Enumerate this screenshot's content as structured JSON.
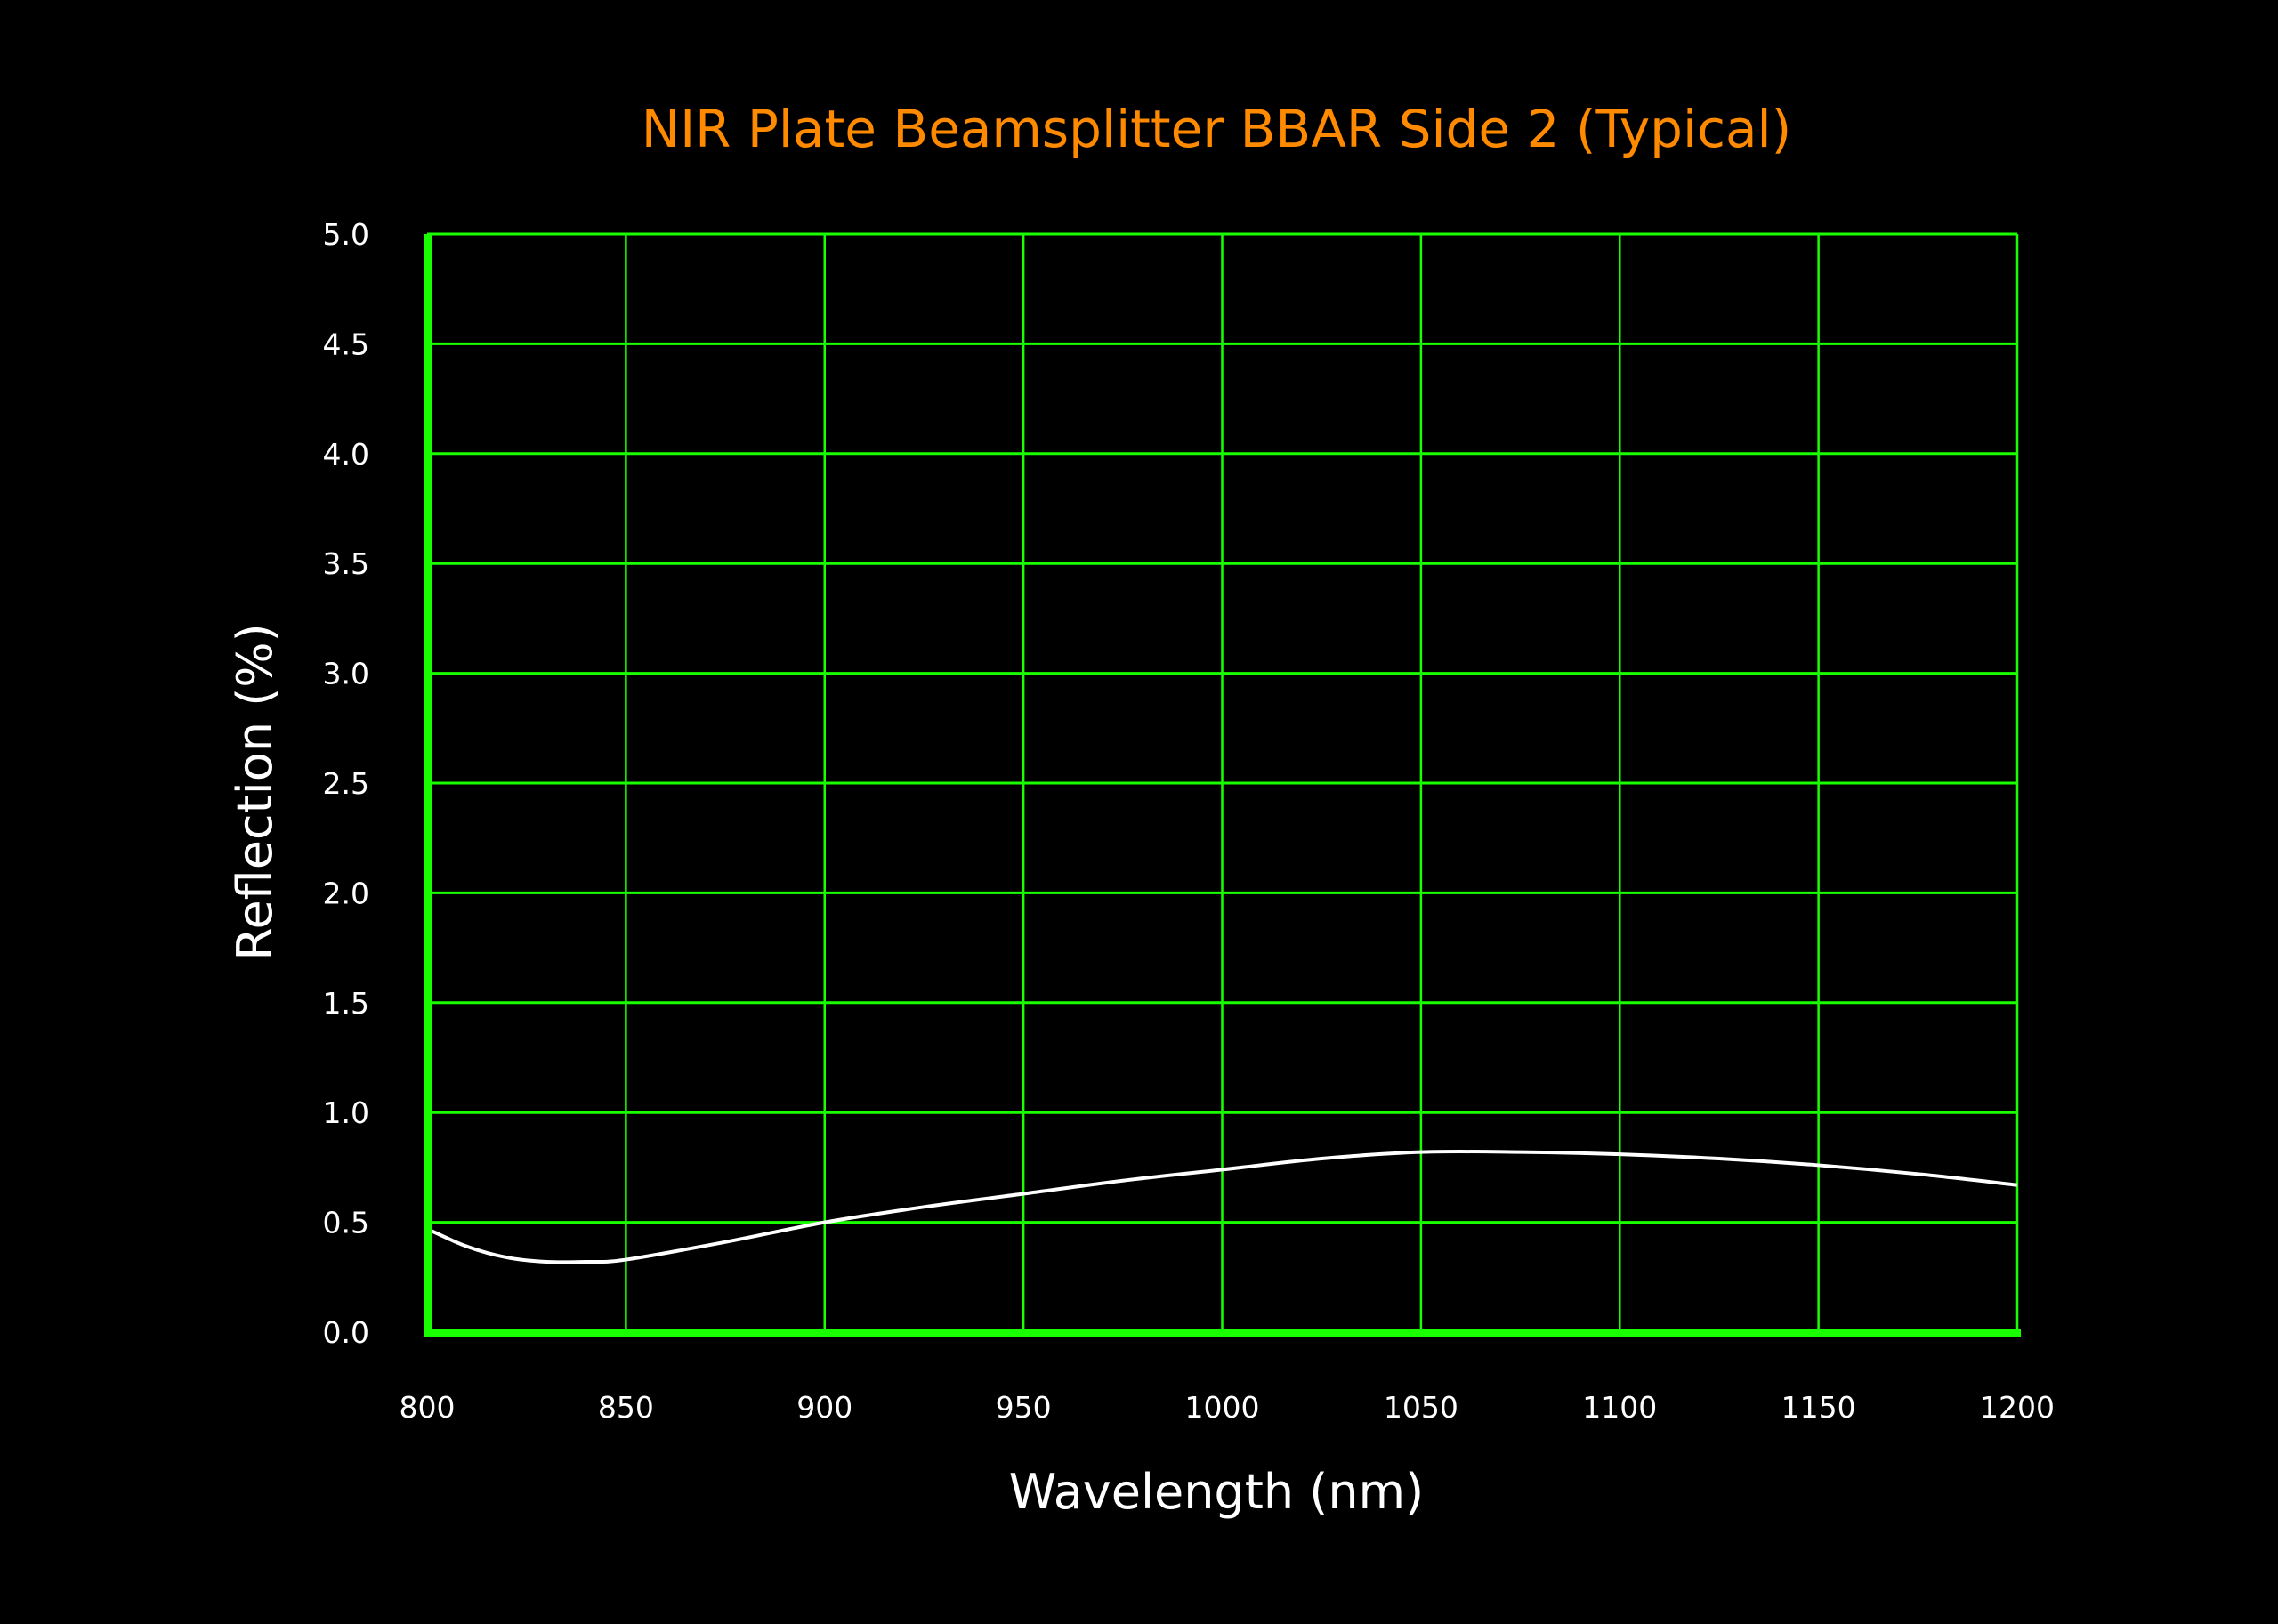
{
  "chart_data": {
    "type": "line",
    "title": "NIR Plate Beamsplitter BBAR Side 2  (Typical)",
    "xlabel": "Wavelength (nm)",
    "ylabel": "Reflection (%)",
    "xlim": [
      800,
      1200
    ],
    "ylim": [
      0,
      5
    ],
    "xticks": [
      "800",
      "850",
      "900",
      "950",
      "1000",
      "1050",
      "1100",
      "1150",
      "1200"
    ],
    "yticks": [
      "0.0",
      "0.5",
      "1.0",
      "1.5",
      "2.0",
      "2.5",
      "3.0",
      "3.5",
      "4.0",
      "4.5",
      "5.0"
    ],
    "grid": true,
    "series": [
      {
        "x": [
          800,
          810,
          820,
          830,
          840,
          850,
          875,
          900,
          925,
          950,
          975,
          1000,
          1025,
          1050,
          1075,
          1100,
          1125,
          1150,
          1175,
          1200
        ],
        "y": [
          0.47,
          0.39,
          0.34,
          0.32,
          0.32,
          0.33,
          0.41,
          0.5,
          0.57,
          0.63,
          0.69,
          0.74,
          0.79,
          0.82,
          0.82,
          0.81,
          0.79,
          0.76,
          0.72,
          0.67
        ]
      }
    ],
    "colors": {
      "title": "#ff8a00",
      "grid": "#1aff00",
      "axis": "#1aff00",
      "line": "#ffffff",
      "background": "#000000",
      "text": "#ffffff"
    }
  }
}
